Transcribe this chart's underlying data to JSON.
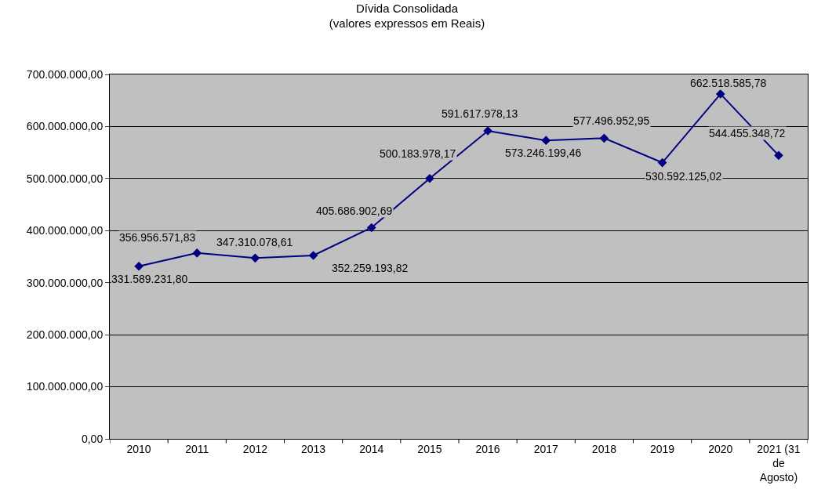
{
  "chart_data": {
    "type": "line",
    "title": "Dívida Consolidada",
    "subtitle": "(valores expressos em Reais)",
    "categories": [
      "2010",
      "2011",
      "2012",
      "2013",
      "2014",
      "2015",
      "2016",
      "2017",
      "2018",
      "2019",
      "2020",
      "2021 (31 de Agosto)"
    ],
    "series": [
      {
        "color": "#000080",
        "values": [
          331589231.8,
          356956571.83,
          347310078.61,
          352259193.82,
          405686902.69,
          500183978.17,
          591617978.13,
          573246199.46,
          577496952.95,
          530592125.02,
          662518585.78,
          544455348.72
        ],
        "value_labels": [
          "331.589.231,80",
          "356.956.571,83",
          "347.310.078,61",
          "352.259.193,82",
          "405.686.902,69",
          "500.183.978,17",
          "591.617.978,13",
          "573.246.199,46",
          "577.496.952,95",
          "530.592.125,02",
          "662.518.585,78",
          "544.455.348,72"
        ]
      }
    ],
    "ylim": [
      0,
      700000000
    ],
    "yticks": [
      {
        "value": 0,
        "label": "0,00"
      },
      {
        "value": 100000000,
        "label": "100.000.000,00"
      },
      {
        "value": 200000000,
        "label": "200.000.000,00"
      },
      {
        "value": 300000000,
        "label": "300.000.000,00"
      },
      {
        "value": 400000000,
        "label": "400.000.000,00"
      },
      {
        "value": 500000000,
        "label": "500.000.000,00"
      },
      {
        "value": 600000000,
        "label": "600.000.000,00"
      },
      {
        "value": 700000000,
        "label": "700.000.000,00"
      }
    ],
    "grid": "y",
    "legend": false,
    "marker": "diamond",
    "line_style": "solid"
  }
}
